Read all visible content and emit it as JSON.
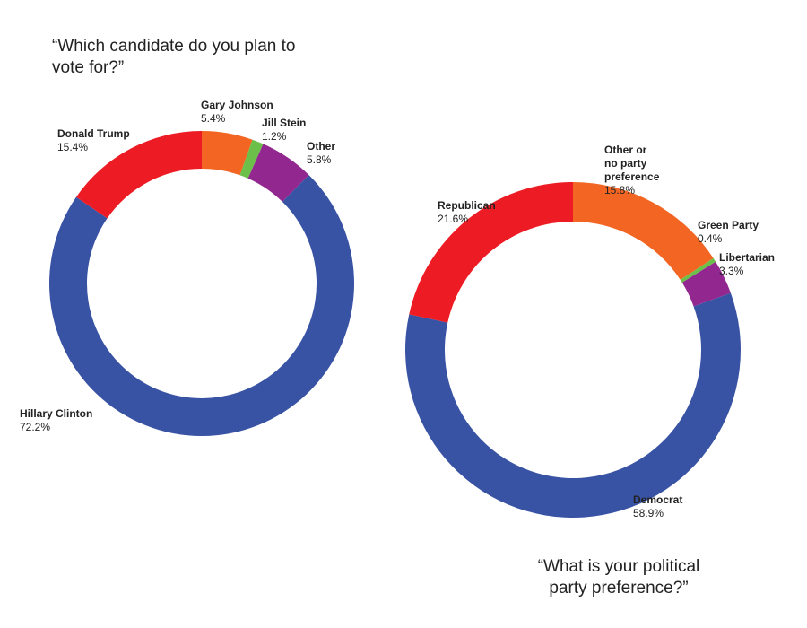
{
  "chart_data": [
    {
      "type": "pie",
      "donut": true,
      "title": "“Which candidate do you plan to vote for?”",
      "categories": [
        "Hillary Clinton",
        "Donald Trump",
        "Gary Johnson",
        "Jill Stein",
        "Other"
      ],
      "values": [
        72.2,
        15.4,
        5.4,
        1.2,
        5.8
      ],
      "value_labels": [
        "72.2%",
        "15.4%",
        "5.4%",
        "1.2%",
        "5.8%"
      ],
      "colors": [
        "#3953a4",
        "#ed1c24",
        "#f26522",
        "#6cc04a",
        "#92278f"
      ]
    },
    {
      "type": "pie",
      "donut": true,
      "title": "“What is your political party preference?”",
      "categories": [
        "Democrat",
        "Republican",
        "Other or\nno party\npreference",
        "Green Party",
        "Libertarian"
      ],
      "values": [
        58.9,
        21.6,
        15.8,
        0.4,
        3.3
      ],
      "value_labels": [
        "58.9%",
        "21.6%",
        "15.8%",
        "0.4%",
        "3.3%"
      ],
      "colors": [
        "#3953a4",
        "#ed1c24",
        "#f26522",
        "#6cc04a",
        "#92278f"
      ]
    }
  ]
}
